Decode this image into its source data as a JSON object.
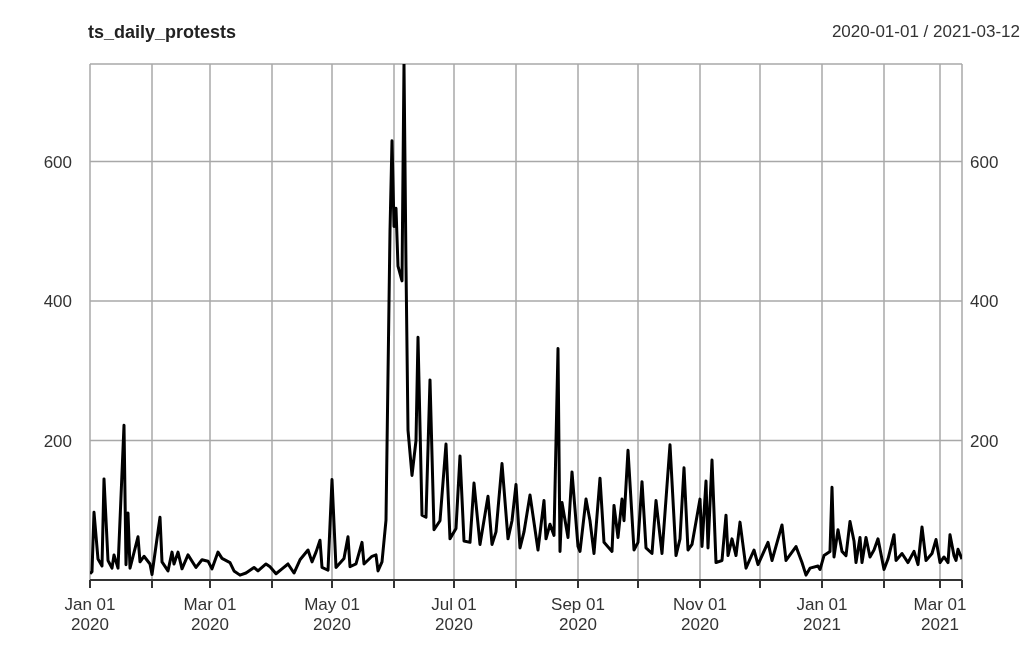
{
  "chart_data": {
    "type": "line",
    "title": "ts_daily_protests",
    "subtitle": "2020-01-01 / 2021-03-12",
    "x": [
      "2020-01-01",
      "2020-01-02",
      "2020-01-03",
      "2020-01-05",
      "2020-01-07",
      "2020-01-08",
      "2020-01-10",
      "2020-01-12",
      "2020-01-13",
      "2020-01-15",
      "2020-01-18",
      "2020-01-19",
      "2020-01-20",
      "2020-01-21",
      "2020-01-22",
      "2020-01-25",
      "2020-01-26",
      "2020-01-28",
      "2020-01-31",
      "2020-02-01",
      "2020-02-05",
      "2020-02-06",
      "2020-02-09",
      "2020-02-11",
      "2020-02-12",
      "2020-02-14",
      "2020-02-16",
      "2020-02-19",
      "2020-02-23",
      "2020-02-26",
      "2020-02-29",
      "2020-03-02",
      "2020-03-05",
      "2020-03-07",
      "2020-03-11",
      "2020-03-13",
      "2020-03-16",
      "2020-03-19",
      "2020-03-23",
      "2020-03-25",
      "2020-03-29",
      "2020-03-31",
      "2020-04-03",
      "2020-04-06",
      "2020-04-09",
      "2020-04-12",
      "2020-04-15",
      "2020-04-19",
      "2020-04-21",
      "2020-04-23",
      "2020-04-25",
      "2020-04-26",
      "2020-04-29",
      "2020-05-01",
      "2020-05-03",
      "2020-05-07",
      "2020-05-09",
      "2020-05-10",
      "2020-05-13",
      "2020-05-16",
      "2020-05-17",
      "2020-05-21",
      "2020-05-23",
      "2020-05-24",
      "2020-05-26",
      "2020-05-28",
      "2020-05-30",
      "2020-05-31",
      "2020-06-01",
      "2020-06-02",
      "2020-06-03",
      "2020-06-05",
      "2020-06-06",
      "2020-06-07",
      "2020-06-08",
      "2020-06-10",
      "2020-06-12",
      "2020-06-13",
      "2020-06-15",
      "2020-06-17",
      "2020-06-19",
      "2020-06-21",
      "2020-06-24",
      "2020-06-27",
      "2020-06-29",
      "2020-07-02",
      "2020-07-04",
      "2020-07-06",
      "2020-07-09",
      "2020-07-11",
      "2020-07-14",
      "2020-07-18",
      "2020-07-20",
      "2020-07-22",
      "2020-07-25",
      "2020-07-28",
      "2020-07-30",
      "2020-08-01",
      "2020-08-03",
      "2020-08-05",
      "2020-08-08",
      "2020-08-12",
      "2020-08-15",
      "2020-08-16",
      "2020-08-18",
      "2020-08-20",
      "2020-08-22",
      "2020-08-23",
      "2020-08-24",
      "2020-08-27",
      "2020-08-29",
      "2020-09-01",
      "2020-09-02",
      "2020-09-05",
      "2020-09-07",
      "2020-09-09",
      "2020-09-12",
      "2020-09-14",
      "2020-09-18",
      "2020-09-19",
      "2020-09-21",
      "2020-09-23",
      "2020-09-24",
      "2020-09-26",
      "2020-09-29",
      "2020-10-01",
      "2020-10-03",
      "2020-10-05",
      "2020-10-08",
      "2020-10-10",
      "2020-10-13",
      "2020-10-17",
      "2020-10-20",
      "2020-10-22",
      "2020-10-24",
      "2020-10-26",
      "2020-10-28",
      "2020-11-01",
      "2020-11-02",
      "2020-11-04",
      "2020-11-05",
      "2020-11-07",
      "2020-11-09",
      "2020-11-12",
      "2020-11-14",
      "2020-11-15",
      "2020-11-17",
      "2020-11-19",
      "2020-11-21",
      "2020-11-24",
      "2020-11-28",
      "2020-11-30",
      "2020-12-05",
      "2020-12-07",
      "2020-12-12",
      "2020-12-14",
      "2020-12-19",
      "2020-12-22",
      "2020-12-24",
      "2020-12-26",
      "2020-12-30",
      "2020-12-31",
      "2021-01-02",
      "2021-01-05",
      "2021-01-06",
      "2021-01-07",
      "2021-01-09",
      "2021-01-11",
      "2021-01-13",
      "2021-01-15",
      "2021-01-17",
      "2021-01-18",
      "2021-01-20",
      "2021-01-21",
      "2021-01-23",
      "2021-01-25",
      "2021-01-27",
      "2021-01-29",
      "2021-02-01",
      "2021-02-03",
      "2021-02-06",
      "2021-02-07",
      "2021-02-10",
      "2021-02-13",
      "2021-02-16",
      "2021-02-18",
      "2021-02-20",
      "2021-02-22",
      "2021-02-25",
      "2021-02-27",
      "2021-03-01",
      "2021-03-03",
      "2021-03-05",
      "2021-03-06",
      "2021-03-08",
      "2021-03-09",
      "2021-03-10",
      "2021-03-12"
    ],
    "series": [
      {
        "color": "#000000",
        "values": [
          9,
          12,
          97,
          30,
          20,
          145,
          28,
          17,
          36,
          17,
          222,
          22,
          96,
          17,
          28,
          62,
          26,
          34,
          23,
          8,
          90,
          26,
          13,
          40,
          23,
          40,
          16,
          36,
          18,
          29,
          27,
          16,
          40,
          31,
          25,
          13,
          7,
          10,
          18,
          13,
          23,
          19,
          9,
          16,
          23,
          10,
          29,
          43,
          26,
          40,
          57,
          18,
          14,
          144,
          18,
          31,
          62,
          19,
          23,
          54,
          23,
          34,
          36,
          13,
          26,
          86,
          501,
          630,
          507,
          533,
          450,
          429,
          740,
          450,
          215,
          150,
          200,
          348,
          93,
          90,
          287,
          72,
          85,
          195,
          59,
          74,
          178,
          56,
          54,
          139,
          51,
          120,
          51,
          69,
          167,
          59,
          85,
          137,
          46,
          69,
          122,
          43,
          114,
          59,
          80,
          64,
          332,
          41,
          111,
          61,
          155,
          48,
          41,
          116,
          85,
          38,
          146,
          54,
          41,
          107,
          61,
          116,
          85,
          186,
          43,
          54,
          141,
          46,
          38,
          114,
          38,
          194,
          35,
          59,
          161,
          43,
          51,
          116,
          48,
          142,
          46,
          172,
          25,
          28,
          93,
          35,
          59,
          35,
          83,
          17,
          43,
          22,
          54,
          28,
          79,
          28,
          48,
          25,
          7,
          17,
          20,
          15,
          35,
          41,
          133,
          33,
          72,
          41,
          35,
          84,
          56,
          25,
          61,
          25,
          61,
          33,
          43,
          59,
          15,
          30,
          65,
          28,
          38,
          25,
          41,
          22,
          76,
          28,
          38,
          58,
          25,
          33,
          25,
          65,
          35,
          28,
          44,
          30
        ]
      }
    ],
    "xlim": [
      "2020-01-01",
      "2021-03-12"
    ],
    "xticks": [
      {
        "value": "2020-01-01",
        "label": "Jan 01\n2020"
      },
      {
        "value": "2020-02-01",
        "label": null
      },
      {
        "value": "2020-03-01",
        "label": "Mar 01\n2020"
      },
      {
        "value": "2020-04-01",
        "label": null
      },
      {
        "value": "2020-05-01",
        "label": "May 01\n2020"
      },
      {
        "value": "2020-06-01",
        "label": null
      },
      {
        "value": "2020-07-01",
        "label": "Jul 01\n2020"
      },
      {
        "value": "2020-08-01",
        "label": null
      },
      {
        "value": "2020-09-01",
        "label": "Sep 01\n2020"
      },
      {
        "value": "2020-10-01",
        "label": null
      },
      {
        "value": "2020-11-01",
        "label": "Nov 01\n2020"
      },
      {
        "value": "2020-12-01",
        "label": null
      },
      {
        "value": "2021-01-01",
        "label": "Jan 01\n2021"
      },
      {
        "value": "2021-02-01",
        "label": null
      },
      {
        "value": "2021-03-01",
        "label": "Mar 01\n2021"
      },
      {
        "value": "2021-03-12",
        "label": null
      }
    ],
    "ylim": [
      0,
      740
    ],
    "yticks": [
      200,
      400,
      600
    ],
    "y2lim": [
      0,
      740
    ],
    "y2ticks": [
      200,
      400,
      600
    ],
    "grid": true,
    "marker": "none",
    "line_style": "solid"
  }
}
